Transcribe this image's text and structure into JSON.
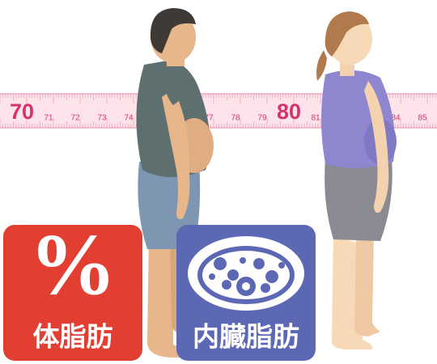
{
  "tape": {
    "labels": [
      "70",
      "71",
      "72",
      "73",
      "74",
      "77",
      "78",
      "79",
      "80",
      "81",
      "84",
      "85"
    ]
  },
  "badges": [
    {
      "symbol": "%",
      "label": "体脂肪"
    },
    {
      "label": "内臓脂肪"
    }
  ]
}
